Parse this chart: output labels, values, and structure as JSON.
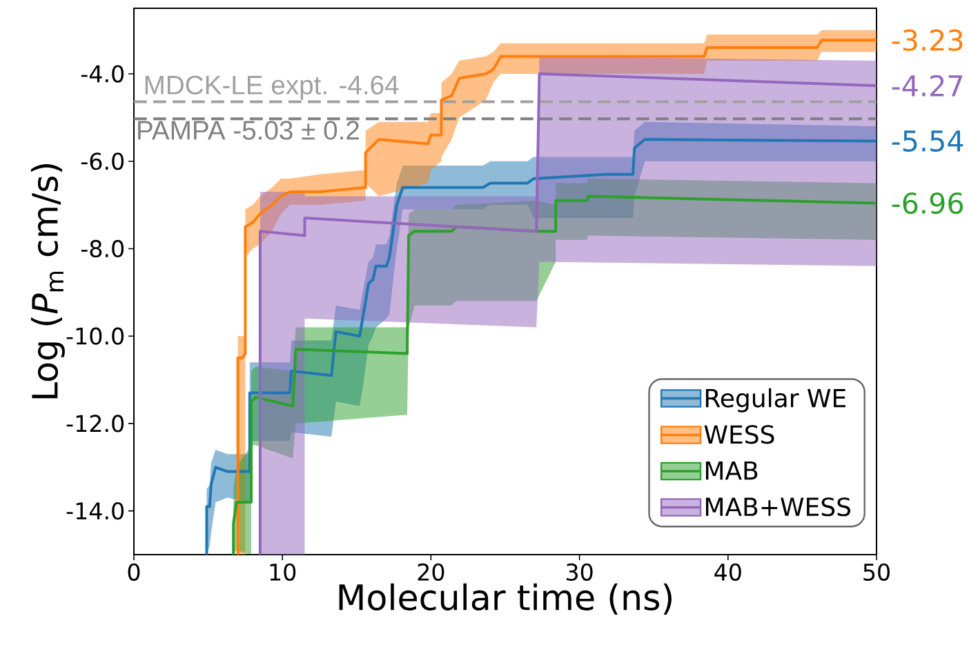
{
  "chart_data": {
    "type": "line",
    "xlabel": "Molecular time (ns)",
    "ylabel": "Log (*P*$_{m}$ cm/s)",
    "xlim": [
      0,
      50
    ],
    "ylim": [
      -15,
      -2.5
    ],
    "xticks": [
      0,
      10,
      20,
      30,
      40,
      50
    ],
    "yticks": [
      {
        "value": -4,
        "label": "-4.0"
      },
      {
        "value": -6,
        "label": "-6.0"
      },
      {
        "value": -8,
        "label": "-8.0"
      },
      {
        "value": -10,
        "label": "-10.0"
      },
      {
        "value": -12,
        "label": "-12.0"
      },
      {
        "value": -14,
        "label": "-14.0"
      }
    ],
    "legend": "bottom right",
    "series": [
      {
        "name": "Regular WE",
        "color": "#1f77b4",
        "x": [
          4.9,
          4.9,
          5.1,
          5.2,
          5.5,
          6.3,
          7.8,
          7.8,
          10.5,
          10.6,
          13.3,
          13.6,
          15.2,
          15.4,
          15.8,
          16.1,
          16.3,
          17.0,
          17.2,
          17.7,
          18.1,
          23.5,
          24.0,
          26.5,
          26.9,
          31.8,
          33.6,
          33.7,
          34.4,
          50
        ],
        "values": [
          -15.0,
          -13.9,
          -13.9,
          -13.4,
          -13.0,
          -13.1,
          -13.1,
          -11.3,
          -11.3,
          -10.8,
          -10.9,
          -9.9,
          -10.0,
          -9.6,
          -8.8,
          -8.7,
          -8.4,
          -8.4,
          -8.2,
          -7.0,
          -6.6,
          -6.6,
          -6.5,
          -6.5,
          -6.4,
          -6.3,
          -6.3,
          -5.7,
          -5.5,
          -5.54
        ],
        "lower": [
          -15.0,
          -15.0,
          -14.8,
          -14.5,
          -13.8,
          -13.7,
          -13.8,
          -12.4,
          -12.4,
          -12.2,
          -12.3,
          -11.5,
          -11.6,
          -11.2,
          -10.2,
          -10.0,
          -9.8,
          -9.6,
          -9.5,
          -8.0,
          -7.1,
          -7.1,
          -7.0,
          -7.0,
          -7.3,
          -7.3,
          -7.3,
          -6.8,
          -6.0,
          -6.0
        ],
        "upper": [
          -14.2,
          -13.5,
          -13.4,
          -12.9,
          -12.6,
          -12.7,
          -12.7,
          -10.6,
          -10.6,
          -10.1,
          -10.1,
          -9.3,
          -9.4,
          -9.0,
          -8.3,
          -8.2,
          -7.9,
          -7.9,
          -7.7,
          -6.5,
          -6.1,
          -6.1,
          -6.0,
          -6.0,
          -5.9,
          -5.9,
          -5.9,
          -5.3,
          -5.1,
          -5.2
        ]
      },
      {
        "name": "WESS",
        "color": "#ff7f0e",
        "x": [
          7.0,
          7.0,
          7.3,
          7.5,
          7.5,
          8.0,
          8.5,
          9.3,
          9.9,
          10.5,
          12.5,
          15.6,
          15.6,
          16.5,
          19.8,
          20.0,
          20.7,
          20.7,
          21.4,
          21.9,
          23.7,
          24.2,
          24.7,
          38.4,
          38.6,
          46.0,
          46.3,
          50
        ],
        "values": [
          -15.0,
          -10.5,
          -10.5,
          -10.4,
          -7.5,
          -7.4,
          -7.2,
          -7.0,
          -6.8,
          -6.7,
          -6.7,
          -6.6,
          -5.8,
          -5.5,
          -5.6,
          -5.4,
          -5.4,
          -4.6,
          -4.5,
          -4.1,
          -4.0,
          -3.9,
          -3.6,
          -3.6,
          -3.4,
          -3.4,
          -3.23,
          -3.23
        ],
        "lower": [
          -15.0,
          -15.0,
          -15.0,
          -15.0,
          -8.2,
          -8.0,
          -7.9,
          -7.6,
          -7.2,
          -7.0,
          -7.0,
          -6.9,
          -6.5,
          -6.8,
          -6.5,
          -6.2,
          -6.0,
          -5.9,
          -5.5,
          -5.0,
          -4.6,
          -4.2,
          -4.0,
          -4.0,
          -3.7,
          -3.7,
          -3.5,
          -3.5
        ],
        "upper": [
          -10.0,
          -10.0,
          -10.0,
          -10.0,
          -7.1,
          -7.0,
          -6.8,
          -6.6,
          -6.4,
          -6.4,
          -6.3,
          -6.2,
          -5.3,
          -5.1,
          -5.1,
          -4.9,
          -4.9,
          -4.2,
          -4.0,
          -3.7,
          -3.6,
          -3.5,
          -3.3,
          -3.3,
          -3.1,
          -3.1,
          -3.0,
          -3.0
        ]
      },
      {
        "name": "MAB",
        "color": "#2ca02c",
        "x": [
          6.7,
          6.7,
          6.9,
          7.9,
          7.9,
          8.2,
          10.7,
          10.9,
          18.4,
          18.5,
          18.9,
          21.4,
          21.7,
          27.1,
          28.4,
          28.4,
          30.5,
          30.6,
          50
        ],
        "values": [
          -15.0,
          -14.3,
          -13.8,
          -13.8,
          -11.5,
          -11.4,
          -11.6,
          -10.3,
          -10.4,
          -7.7,
          -7.6,
          -7.6,
          -7.5,
          -7.6,
          -7.6,
          -6.9,
          -6.9,
          -6.8,
          -6.96
        ],
        "lower": [
          -15.0,
          -15.0,
          -14.9,
          -15.0,
          -12.5,
          -12.5,
          -12.8,
          -12.0,
          -11.8,
          -9.8,
          -9.3,
          -9.3,
          -9.2,
          -9.2,
          -8.3,
          -7.8,
          -7.8,
          -7.7,
          -7.8
        ],
        "upper": [
          -13.5,
          -13.5,
          -13.0,
          -12.5,
          -10.8,
          -10.7,
          -10.8,
          -9.8,
          -9.8,
          -7.2,
          -7.1,
          -7.1,
          -7.0,
          -6.9,
          -7.0,
          -6.5,
          -6.5,
          -6.4,
          -6.5
        ]
      },
      {
        "name": "MAB+WESS",
        "color": "#9467bd",
        "x": [
          8.5,
          8.5,
          11.5,
          11.5,
          27.1,
          27.3,
          50
        ],
        "values": [
          -15.0,
          -7.6,
          -7.7,
          -7.3,
          -7.6,
          -4.0,
          -4.27
        ],
        "lower": [
          -15.0,
          -15.0,
          -15.0,
          -9.6,
          -9.8,
          -8.3,
          -8.4
        ],
        "upper": [
          -6.7,
          -6.7,
          -6.7,
          -6.8,
          -6.8,
          -3.6,
          -3.7
        ]
      }
    ],
    "ref_lines": [
      {
        "axis": "y",
        "value": -4.64,
        "label": "MDCK-LE expt.  -4.64",
        "color": "#a0a0a0",
        "line_style": "dashed"
      },
      {
        "axis": "y",
        "value": -5.03,
        "label": "PAMPA -5.03 ± 0.2",
        "color": "#808080",
        "line_style": "dashed"
      }
    ],
    "annotations": [
      "-3.23",
      "-4.27",
      "-5.54",
      "-6.96"
    ]
  }
}
